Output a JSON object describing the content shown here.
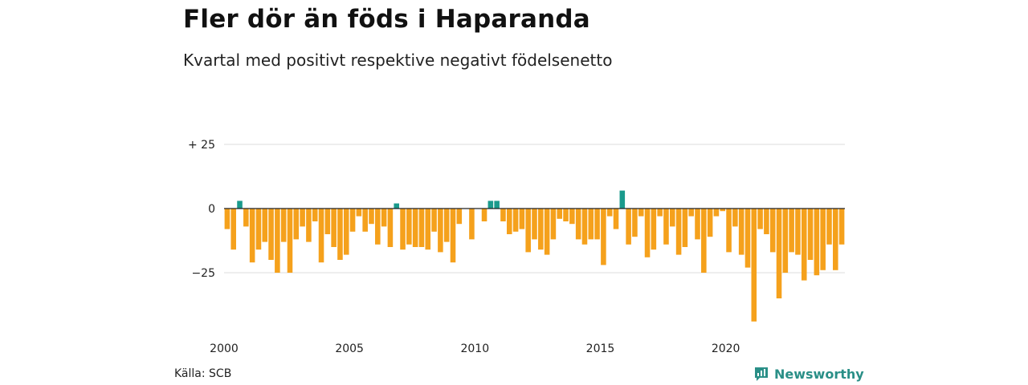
{
  "header": {
    "title": "Fler dör än föds i Haparanda",
    "subtitle": "Kvartal med positivt respektive negativt födelsenetto"
  },
  "footer": {
    "source": "Källa: SCB",
    "brand": "Newsworthy",
    "brand_icon": "newsworthy-logo-icon"
  },
  "colors": {
    "positive": "#1a9a8c",
    "negative": "#f5a11c",
    "grid": "#dddddd",
    "baseline": "#222222",
    "brand": "#2a8f87"
  },
  "chart_data": {
    "type": "bar",
    "x_start": "2000 Q1",
    "x_tick_labels": [
      "2000",
      "2005",
      "2010",
      "2015",
      "2020"
    ],
    "y_tick_labels": [
      "+ 25",
      "0",
      "−25"
    ],
    "y_ticks": [
      25,
      0,
      -25
    ],
    "ylim": [
      -45,
      25
    ],
    "grid": true,
    "series": [
      {
        "values": [
          -8,
          -16,
          3,
          -7,
          -21,
          -16,
          -13,
          -20,
          -25,
          -13,
          -25,
          -12,
          -7,
          -13,
          -5,
          -21,
          -10,
          -15,
          -20,
          -18,
          -9,
          -3,
          -9,
          -6,
          -14,
          -7,
          -15,
          2,
          -16,
          -14,
          -15,
          -15,
          -16,
          -9,
          -17,
          -13,
          -21,
          -6,
          0,
          -12,
          0,
          -5,
          3,
          3,
          -5,
          -10,
          -9,
          -8,
          -17,
          -12,
          -16,
          -18,
          -12,
          -4,
          -5,
          -6,
          -12,
          -14,
          -12,
          -12,
          -22,
          -3,
          -8,
          7,
          -14,
          -11,
          -3,
          -19,
          -16,
          -3,
          -14,
          -7,
          -18,
          -15,
          -3,
          -12,
          -25,
          -11,
          -3,
          -1,
          -17,
          -7,
          -18,
          -23,
          -44,
          -8,
          -10,
          -17,
          -35,
          -25,
          -17,
          -18,
          -28,
          -20,
          -26,
          -24,
          -14,
          -24,
          -14
        ]
      }
    ]
  }
}
